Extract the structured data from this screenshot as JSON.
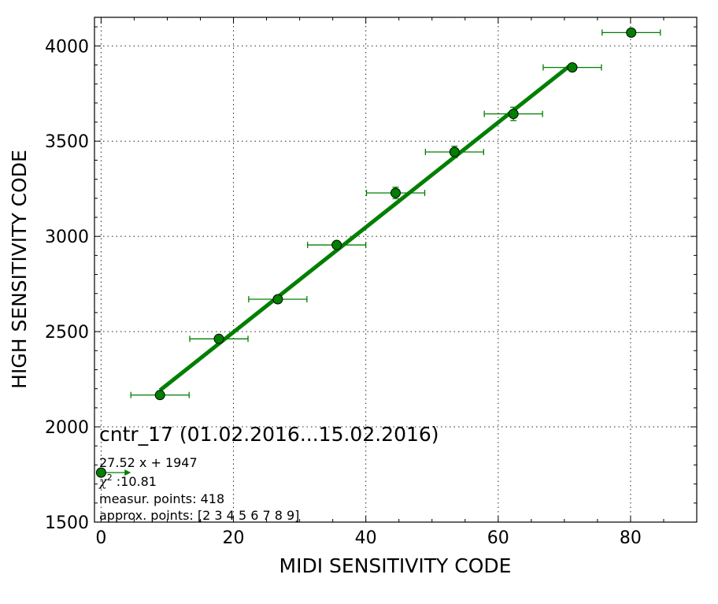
{
  "chart_data": {
    "type": "scatter",
    "title": "cntr_17 (01.02.2016...15.02.2016)",
    "xlabel": "MIDI SENSITIVITY CODE",
    "ylabel": "HIGH SENSITIVITY CODE",
    "xlim": [
      -1,
      90
    ],
    "ylim": [
      1500,
      4150
    ],
    "x_ticks": [
      0,
      20,
      40,
      60,
      80
    ],
    "y_ticks": [
      1500,
      2000,
      2500,
      3000,
      3500,
      4000
    ],
    "x_tick_labels": [
      "0",
      "20",
      "40",
      "60",
      "80"
    ],
    "y_tick_labels": [
      "1500",
      "2000",
      "2500",
      "3000",
      "3500",
      "4000"
    ],
    "grid": true,
    "series": [
      {
        "color": "#007f00",
        "points": [
          {
            "x": 0.0,
            "y": 1760,
            "xerr": 0,
            "yerr": 0,
            "arrow_to": 4.5
          },
          {
            "x": 8.9,
            "y": 2167,
            "xerr": 4.4,
            "yerr": 8
          },
          {
            "x": 17.8,
            "y": 2462,
            "xerr": 4.4,
            "yerr": 10
          },
          {
            "x": 26.7,
            "y": 2670,
            "xerr": 4.4,
            "yerr": 12
          },
          {
            "x": 35.6,
            "y": 2955,
            "xerr": 4.4,
            "yerr": 15
          },
          {
            "x": 44.5,
            "y": 3228,
            "xerr": 4.4,
            "yerr": 30
          },
          {
            "x": 53.4,
            "y": 3443,
            "xerr": 4.4,
            "yerr": 30
          },
          {
            "x": 62.3,
            "y": 3643,
            "xerr": 4.4,
            "yerr": 35
          },
          {
            "x": 71.2,
            "y": 3887,
            "xerr": 4.4,
            "yerr": 10
          },
          {
            "x": 80.1,
            "y": 4070,
            "xerr": 4.4,
            "yerr": 8
          }
        ]
      }
    ],
    "fit_line": {
      "x_start": 8.9,
      "x_end": 71.2,
      "slope": 27.52,
      "intercept": 1947,
      "color": "#007f00"
    },
    "annotations": {
      "equation": "27.52 x + 1947",
      "chi2_symbol": "χ",
      "chi2_exponent": "2",
      "chi2_value": " :10.81",
      "measur_points": "measur. points: 418",
      "approx_points": "approx. points: [2 3 4 5 6 7 8 9]"
    }
  }
}
